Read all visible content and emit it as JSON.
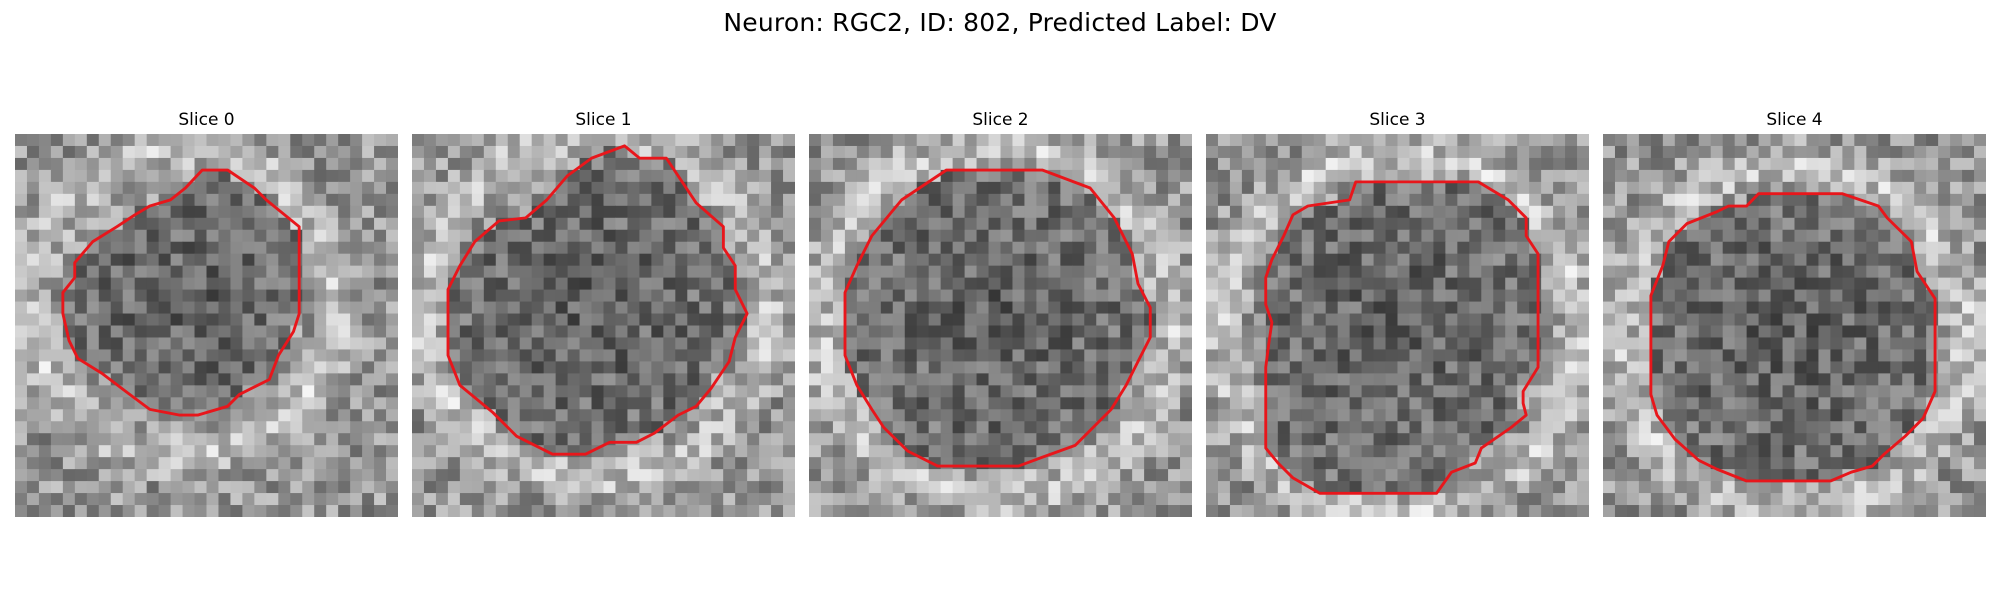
{
  "figure": {
    "title": "Neuron: RGC2, ID: 802, Predicted Label: DV"
  },
  "colors": {
    "background": "#ffffff",
    "contour": "#e8161b",
    "image_colormap": "grayscale"
  },
  "panels": [
    {
      "title": "Slice 0",
      "seed": 11,
      "contour": [
        [
          0.489,
          0.094
        ],
        [
          0.555,
          0.094
        ],
        [
          0.625,
          0.141
        ],
        [
          0.656,
          0.172
        ],
        [
          0.742,
          0.242
        ],
        [
          0.742,
          0.469
        ],
        [
          0.727,
          0.516
        ],
        [
          0.688,
          0.578
        ],
        [
          0.664,
          0.641
        ],
        [
          0.586,
          0.68
        ],
        [
          0.555,
          0.711
        ],
        [
          0.477,
          0.734
        ],
        [
          0.43,
          0.734
        ],
        [
          0.352,
          0.719
        ],
        [
          0.289,
          0.672
        ],
        [
          0.227,
          0.625
        ],
        [
          0.164,
          0.586
        ],
        [
          0.141,
          0.539
        ],
        [
          0.125,
          0.469
        ],
        [
          0.125,
          0.414
        ],
        [
          0.156,
          0.375
        ],
        [
          0.156,
          0.336
        ],
        [
          0.203,
          0.281
        ],
        [
          0.266,
          0.242
        ],
        [
          0.313,
          0.211
        ],
        [
          0.352,
          0.188
        ],
        [
          0.406,
          0.172
        ],
        [
          0.445,
          0.141
        ]
      ],
      "dark_center": [
        0.44,
        0.44
      ],
      "dark_radius": 0.33
    },
    {
      "title": "Slice 1",
      "seed": 23,
      "contour": [
        [
          0.555,
          0.031
        ],
        [
          0.594,
          0.063
        ],
        [
          0.664,
          0.063
        ],
        [
          0.742,
          0.18
        ],
        [
          0.813,
          0.242
        ],
        [
          0.813,
          0.297
        ],
        [
          0.844,
          0.344
        ],
        [
          0.844,
          0.406
        ],
        [
          0.875,
          0.469
        ],
        [
          0.844,
          0.531
        ],
        [
          0.828,
          0.594
        ],
        [
          0.781,
          0.664
        ],
        [
          0.742,
          0.711
        ],
        [
          0.695,
          0.734
        ],
        [
          0.633,
          0.781
        ],
        [
          0.586,
          0.805
        ],
        [
          0.516,
          0.805
        ],
        [
          0.453,
          0.836
        ],
        [
          0.367,
          0.836
        ],
        [
          0.273,
          0.789
        ],
        [
          0.211,
          0.727
        ],
        [
          0.125,
          0.656
        ],
        [
          0.094,
          0.578
        ],
        [
          0.094,
          0.406
        ],
        [
          0.125,
          0.344
        ],
        [
          0.164,
          0.281
        ],
        [
          0.227,
          0.227
        ],
        [
          0.297,
          0.219
        ],
        [
          0.352,
          0.172
        ],
        [
          0.406,
          0.109
        ],
        [
          0.469,
          0.063
        ]
      ],
      "dark_center": [
        0.48,
        0.45
      ],
      "dark_radius": 0.38
    },
    {
      "title": "Slice 2",
      "seed": 37,
      "contour": [
        [
          0.359,
          0.094
        ],
        [
          0.609,
          0.094
        ],
        [
          0.734,
          0.141
        ],
        [
          0.797,
          0.219
        ],
        [
          0.844,
          0.313
        ],
        [
          0.859,
          0.391
        ],
        [
          0.891,
          0.453
        ],
        [
          0.891,
          0.531
        ],
        [
          0.859,
          0.594
        ],
        [
          0.828,
          0.656
        ],
        [
          0.789,
          0.719
        ],
        [
          0.742,
          0.766
        ],
        [
          0.695,
          0.813
        ],
        [
          0.609,
          0.844
        ],
        [
          0.547,
          0.867
        ],
        [
          0.336,
          0.867
        ],
        [
          0.258,
          0.828
        ],
        [
          0.195,
          0.766
        ],
        [
          0.164,
          0.719
        ],
        [
          0.125,
          0.656
        ],
        [
          0.094,
          0.578
        ],
        [
          0.094,
          0.414
        ],
        [
          0.125,
          0.344
        ],
        [
          0.164,
          0.266
        ],
        [
          0.242,
          0.172
        ]
      ],
      "dark_center": [
        0.49,
        0.49
      ],
      "dark_radius": 0.39
    },
    {
      "title": "Slice 3",
      "seed": 51,
      "contour": [
        [
          0.391,
          0.125
        ],
        [
          0.711,
          0.125
        ],
        [
          0.789,
          0.172
        ],
        [
          0.836,
          0.219
        ],
        [
          0.836,
          0.266
        ],
        [
          0.867,
          0.313
        ],
        [
          0.867,
          0.609
        ],
        [
          0.828,
          0.672
        ],
        [
          0.828,
          0.703
        ],
        [
          0.836,
          0.734
        ],
        [
          0.797,
          0.766
        ],
        [
          0.719,
          0.82
        ],
        [
          0.703,
          0.859
        ],
        [
          0.641,
          0.883
        ],
        [
          0.602,
          0.938
        ],
        [
          0.297,
          0.938
        ],
        [
          0.227,
          0.898
        ],
        [
          0.188,
          0.859
        ],
        [
          0.156,
          0.82
        ],
        [
          0.156,
          0.609
        ],
        [
          0.164,
          0.547
        ],
        [
          0.172,
          0.492
        ],
        [
          0.156,
          0.445
        ],
        [
          0.156,
          0.375
        ],
        [
          0.172,
          0.328
        ],
        [
          0.203,
          0.266
        ],
        [
          0.227,
          0.211
        ],
        [
          0.266,
          0.188
        ],
        [
          0.375,
          0.172
        ]
      ],
      "dark_center": [
        0.51,
        0.52
      ],
      "dark_radius": 0.4
    },
    {
      "title": "Slice 4",
      "seed": 67,
      "contour": [
        [
          0.406,
          0.156
        ],
        [
          0.625,
          0.156
        ],
        [
          0.719,
          0.188
        ],
        [
          0.742,
          0.219
        ],
        [
          0.805,
          0.281
        ],
        [
          0.82,
          0.359
        ],
        [
          0.867,
          0.43
        ],
        [
          0.867,
          0.672
        ],
        [
          0.836,
          0.742
        ],
        [
          0.789,
          0.789
        ],
        [
          0.734,
          0.836
        ],
        [
          0.703,
          0.867
        ],
        [
          0.648,
          0.883
        ],
        [
          0.594,
          0.906
        ],
        [
          0.375,
          0.906
        ],
        [
          0.297,
          0.875
        ],
        [
          0.25,
          0.852
        ],
        [
          0.188,
          0.797
        ],
        [
          0.141,
          0.734
        ],
        [
          0.125,
          0.68
        ],
        [
          0.125,
          0.422
        ],
        [
          0.156,
          0.344
        ],
        [
          0.172,
          0.281
        ],
        [
          0.219,
          0.234
        ],
        [
          0.297,
          0.203
        ],
        [
          0.328,
          0.188
        ],
        [
          0.375,
          0.188
        ]
      ],
      "dark_center": [
        0.5,
        0.53
      ],
      "dark_radius": 0.38
    }
  ]
}
